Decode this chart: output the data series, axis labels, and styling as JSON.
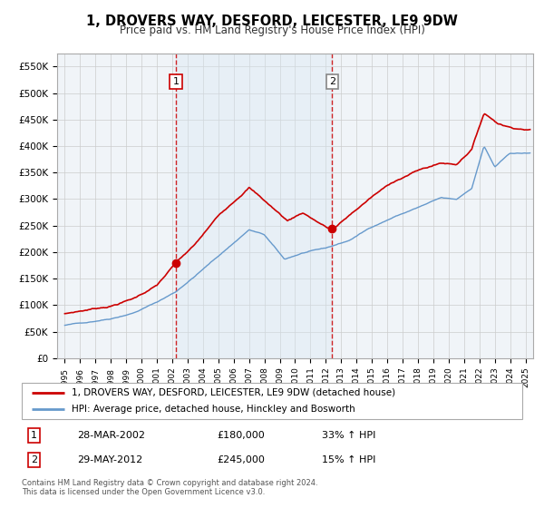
{
  "title": "1, DROVERS WAY, DESFORD, LEICESTER, LE9 9DW",
  "subtitle": "Price paid vs. HM Land Registry's House Price Index (HPI)",
  "legend_line1": "1, DROVERS WAY, DESFORD, LEICESTER, LE9 9DW (detached house)",
  "legend_line2": "HPI: Average price, detached house, Hinckley and Bosworth",
  "sale1_date": "28-MAR-2002",
  "sale1_price": "£180,000",
  "sale1_hpi": "33% ↑ HPI",
  "sale2_date": "29-MAY-2012",
  "sale2_price": "£245,000",
  "sale2_hpi": "15% ↑ HPI",
  "footer1": "Contains HM Land Registry data © Crown copyright and database right 2024.",
  "footer2": "This data is licensed under the Open Government Licence v3.0.",
  "house_color": "#cc0000",
  "hpi_color": "#6699cc",
  "background_color": "#ffffff",
  "plot_bg_color": "#f0f4f8",
  "grid_color": "#cccccc",
  "vline_color": "#cc0000",
  "shade_color": "#d8e8f5",
  "sale1_x": 2002.23,
  "sale1_y": 180000,
  "sale2_x": 2012.41,
  "sale2_y": 245000,
  "ylim": [
    0,
    575000
  ],
  "xlim": [
    1994.5,
    2025.5
  ],
  "yticks": [
    0,
    50000,
    100000,
    150000,
    200000,
    250000,
    300000,
    350000,
    400000,
    450000,
    500000,
    550000
  ],
  "ytick_labels": [
    "£0",
    "£50K",
    "£100K",
    "£150K",
    "£200K",
    "£250K",
    "£300K",
    "£350K",
    "£400K",
    "£450K",
    "£500K",
    "£550K"
  ]
}
